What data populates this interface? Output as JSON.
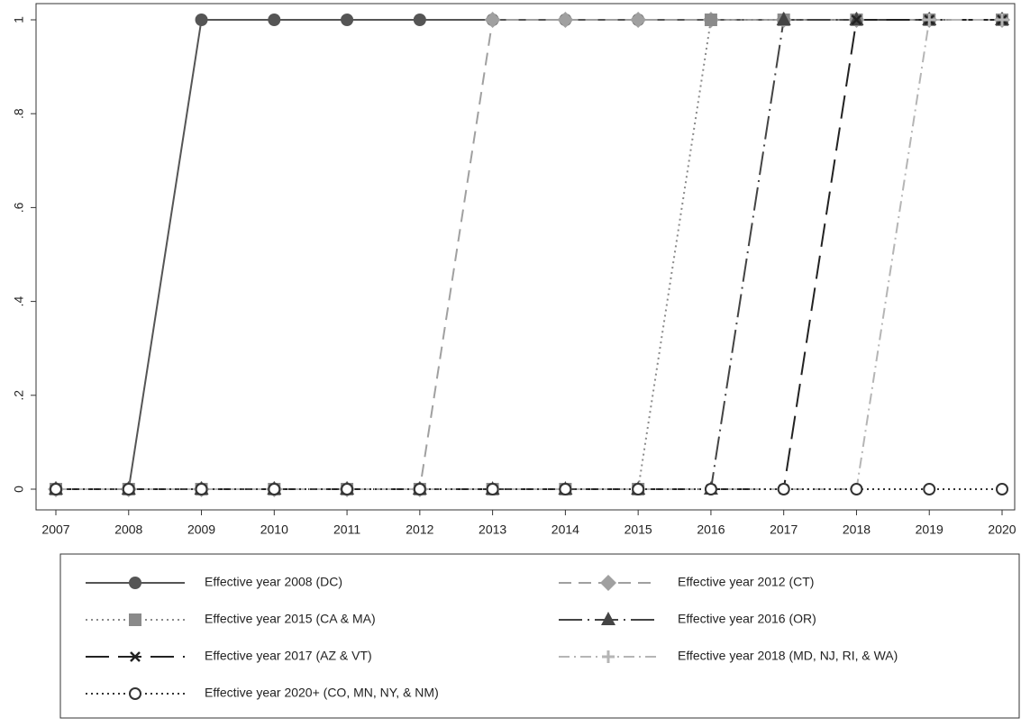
{
  "chart_data": {
    "type": "line",
    "x": [
      2007,
      2008,
      2009,
      2010,
      2011,
      2012,
      2013,
      2014,
      2015,
      2016,
      2017,
      2018,
      2019,
      2020
    ],
    "xlim": [
      2007,
      2020
    ],
    "xticks": [
      2007,
      2008,
      2009,
      2010,
      2011,
      2012,
      2013,
      2014,
      2015,
      2016,
      2017,
      2018,
      2019,
      2020
    ],
    "ylim": [
      0,
      1
    ],
    "yticks": [
      0,
      {
        "value": 0.2,
        "label": ".2"
      },
      {
        "value": 0.4,
        "label": ".4"
      },
      {
        "value": 0.6,
        "label": ".6"
      },
      {
        "value": 0.8,
        "label": ".8"
      },
      1
    ],
    "series": [
      {
        "name": "Effective year 2008 (DC)",
        "color": "#555555",
        "line_style": "solid",
        "marker": "circle",
        "values": [
          0,
          0,
          1,
          1,
          1,
          1,
          1,
          1,
          1,
          1,
          1,
          1,
          1,
          1
        ]
      },
      {
        "name": "Effective year 2012 (CT)",
        "color": "#a0a0a0",
        "line_style": "dashed",
        "marker": "diamond",
        "values": [
          0,
          0,
          0,
          0,
          0,
          0,
          1,
          1,
          1,
          1,
          1,
          1,
          1,
          1
        ]
      },
      {
        "name": "Effective year 2015 (CA & MA)",
        "color": "#8a8a8a",
        "line_style": "dotted",
        "marker": "square",
        "values": [
          0,
          0,
          0,
          0,
          0,
          0,
          0,
          0,
          0,
          1,
          1,
          1,
          1,
          1
        ]
      },
      {
        "name": "Effective year 2016 (OR)",
        "color": "#444444",
        "line_style": "longdashdot",
        "marker": "triangle",
        "values": [
          0,
          0,
          0,
          0,
          0,
          0,
          0,
          0,
          0,
          0,
          1,
          1,
          1,
          1
        ]
      },
      {
        "name": "Effective year 2017 (AZ & VT)",
        "color": "#222222",
        "line_style": "longdash",
        "marker": "x",
        "values": [
          0,
          0,
          0,
          0,
          0,
          0,
          0,
          0,
          0,
          0,
          0,
          1,
          1,
          1
        ]
      },
      {
        "name": "Effective year 2018 (MD, NJ, RI, & WA)",
        "color": "#b5b5b5",
        "line_style": "dashdot",
        "marker": "plus",
        "values": [
          0,
          0,
          0,
          0,
          0,
          0,
          0,
          0,
          0,
          0,
          0,
          0,
          1,
          1
        ]
      },
      {
        "name": "Effective year 2020+ (CO, MN, NY, & NM)",
        "color": "#333333",
        "line_style": "dotted",
        "marker": "open-circle",
        "values": [
          0,
          0,
          0,
          0,
          0,
          0,
          0,
          0,
          0,
          0,
          0,
          0,
          0,
          0
        ]
      }
    ]
  }
}
